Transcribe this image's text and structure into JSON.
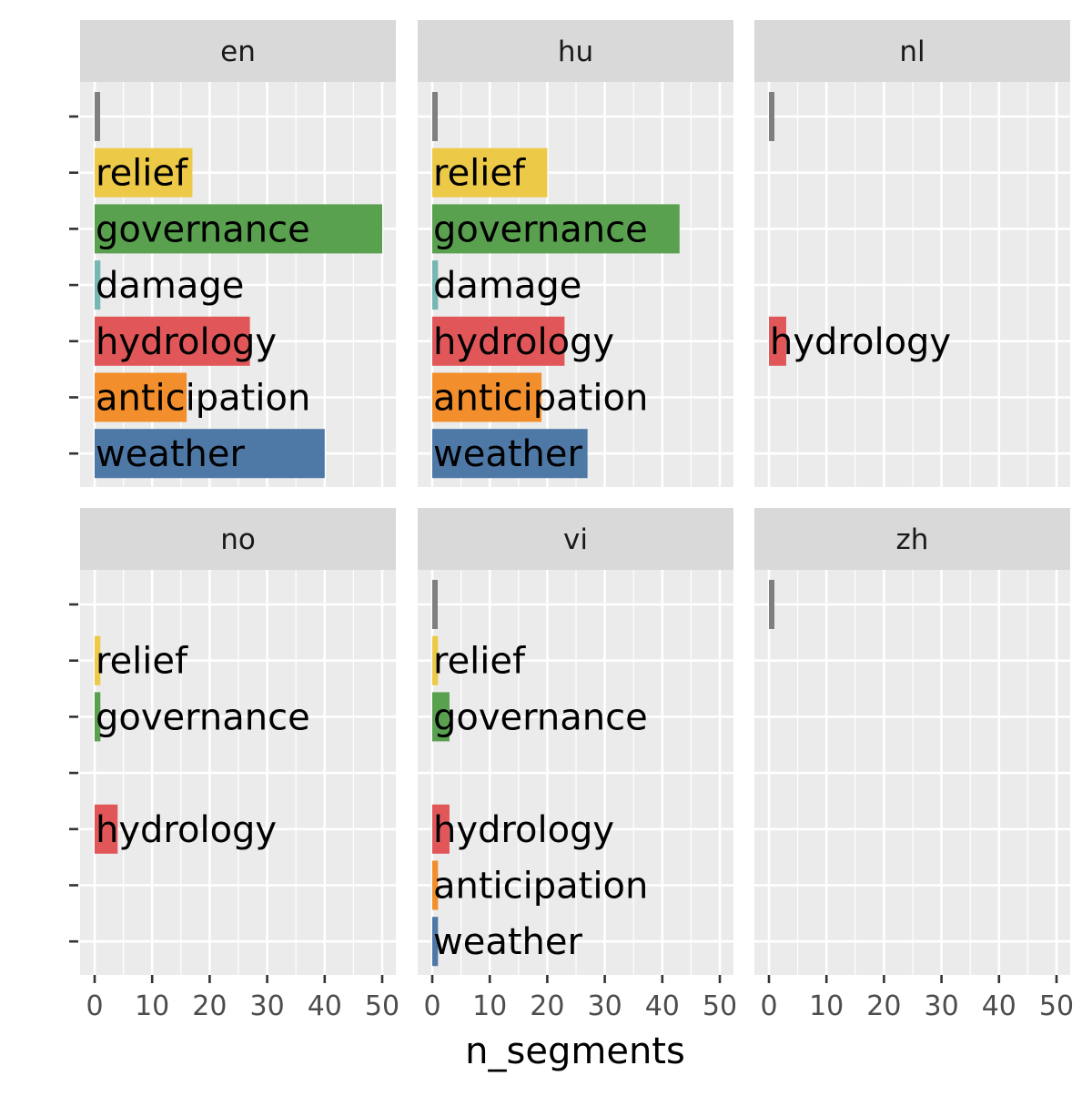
{
  "chart_data": {
    "type": "bar",
    "orientation": "horizontal",
    "facet_layout": "2x3",
    "xlabel": "n_segments",
    "ylabel": "",
    "xlim": [
      0,
      50
    ],
    "x_ticks": [
      0,
      10,
      20,
      30,
      40,
      50
    ],
    "grid": true,
    "legend": "none",
    "categories": [
      "",
      "relief",
      "governance",
      "damage",
      "hydrology",
      "anticipation",
      "weather"
    ],
    "category_colors": {
      "": "#7f7f7f",
      "relief": "#edc948",
      "governance": "#59a14f",
      "damage": "#76b7b2",
      "hydrology": "#e15759",
      "anticipation": "#f28e2b",
      "weather": "#4e79a7"
    },
    "facets": [
      {
        "name": "en",
        "bars": [
          {
            "category": "",
            "value": 1
          },
          {
            "category": "relief",
            "value": 17
          },
          {
            "category": "governance",
            "value": 50
          },
          {
            "category": "damage",
            "value": 1
          },
          {
            "category": "hydrology",
            "value": 27
          },
          {
            "category": "anticipation",
            "value": 16
          },
          {
            "category": "weather",
            "value": 40
          }
        ]
      },
      {
        "name": "hu",
        "bars": [
          {
            "category": "",
            "value": 1
          },
          {
            "category": "relief",
            "value": 20
          },
          {
            "category": "governance",
            "value": 43
          },
          {
            "category": "damage",
            "value": 1
          },
          {
            "category": "hydrology",
            "value": 23
          },
          {
            "category": "anticipation",
            "value": 19
          },
          {
            "category": "weather",
            "value": 27
          }
        ]
      },
      {
        "name": "nl",
        "bars": [
          {
            "category": "",
            "value": 1
          },
          {
            "category": "hydrology",
            "value": 3
          }
        ]
      },
      {
        "name": "no",
        "bars": [
          {
            "category": "relief",
            "value": 1
          },
          {
            "category": "governance",
            "value": 1
          },
          {
            "category": "hydrology",
            "value": 4
          }
        ]
      },
      {
        "name": "vi",
        "bars": [
          {
            "category": "",
            "value": 1
          },
          {
            "category": "relief",
            "value": 1
          },
          {
            "category": "governance",
            "value": 3
          },
          {
            "category": "hydrology",
            "value": 3
          },
          {
            "category": "anticipation",
            "value": 1
          },
          {
            "category": "weather",
            "value": 1
          }
        ]
      },
      {
        "name": "zh",
        "bars": [
          {
            "category": "",
            "value": 1
          }
        ]
      }
    ]
  }
}
